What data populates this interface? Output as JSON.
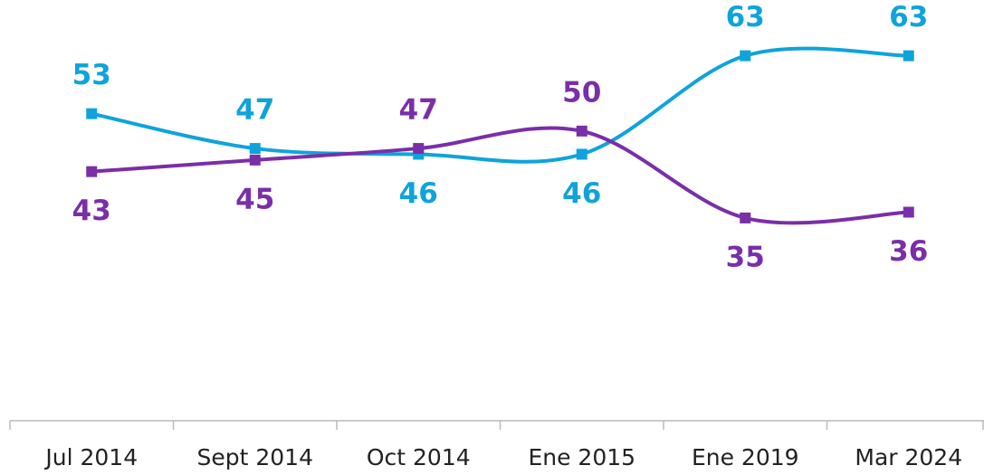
{
  "chart_data": {
    "type": "line",
    "categories": [
      "Jul 2014",
      "Sept 2014",
      "Oct 2014",
      "Ene 2015",
      "Ene 2019",
      "Mar 2024"
    ],
    "series": [
      {
        "color": "#0fa3dc",
        "values": [
          53,
          47,
          46,
          46,
          63,
          63
        ]
      },
      {
        "color": "#7a2ea8",
        "values": [
          43,
          45,
          47,
          50,
          35,
          36
        ]
      }
    ],
    "ylim": [
      0,
      72
    ]
  }
}
